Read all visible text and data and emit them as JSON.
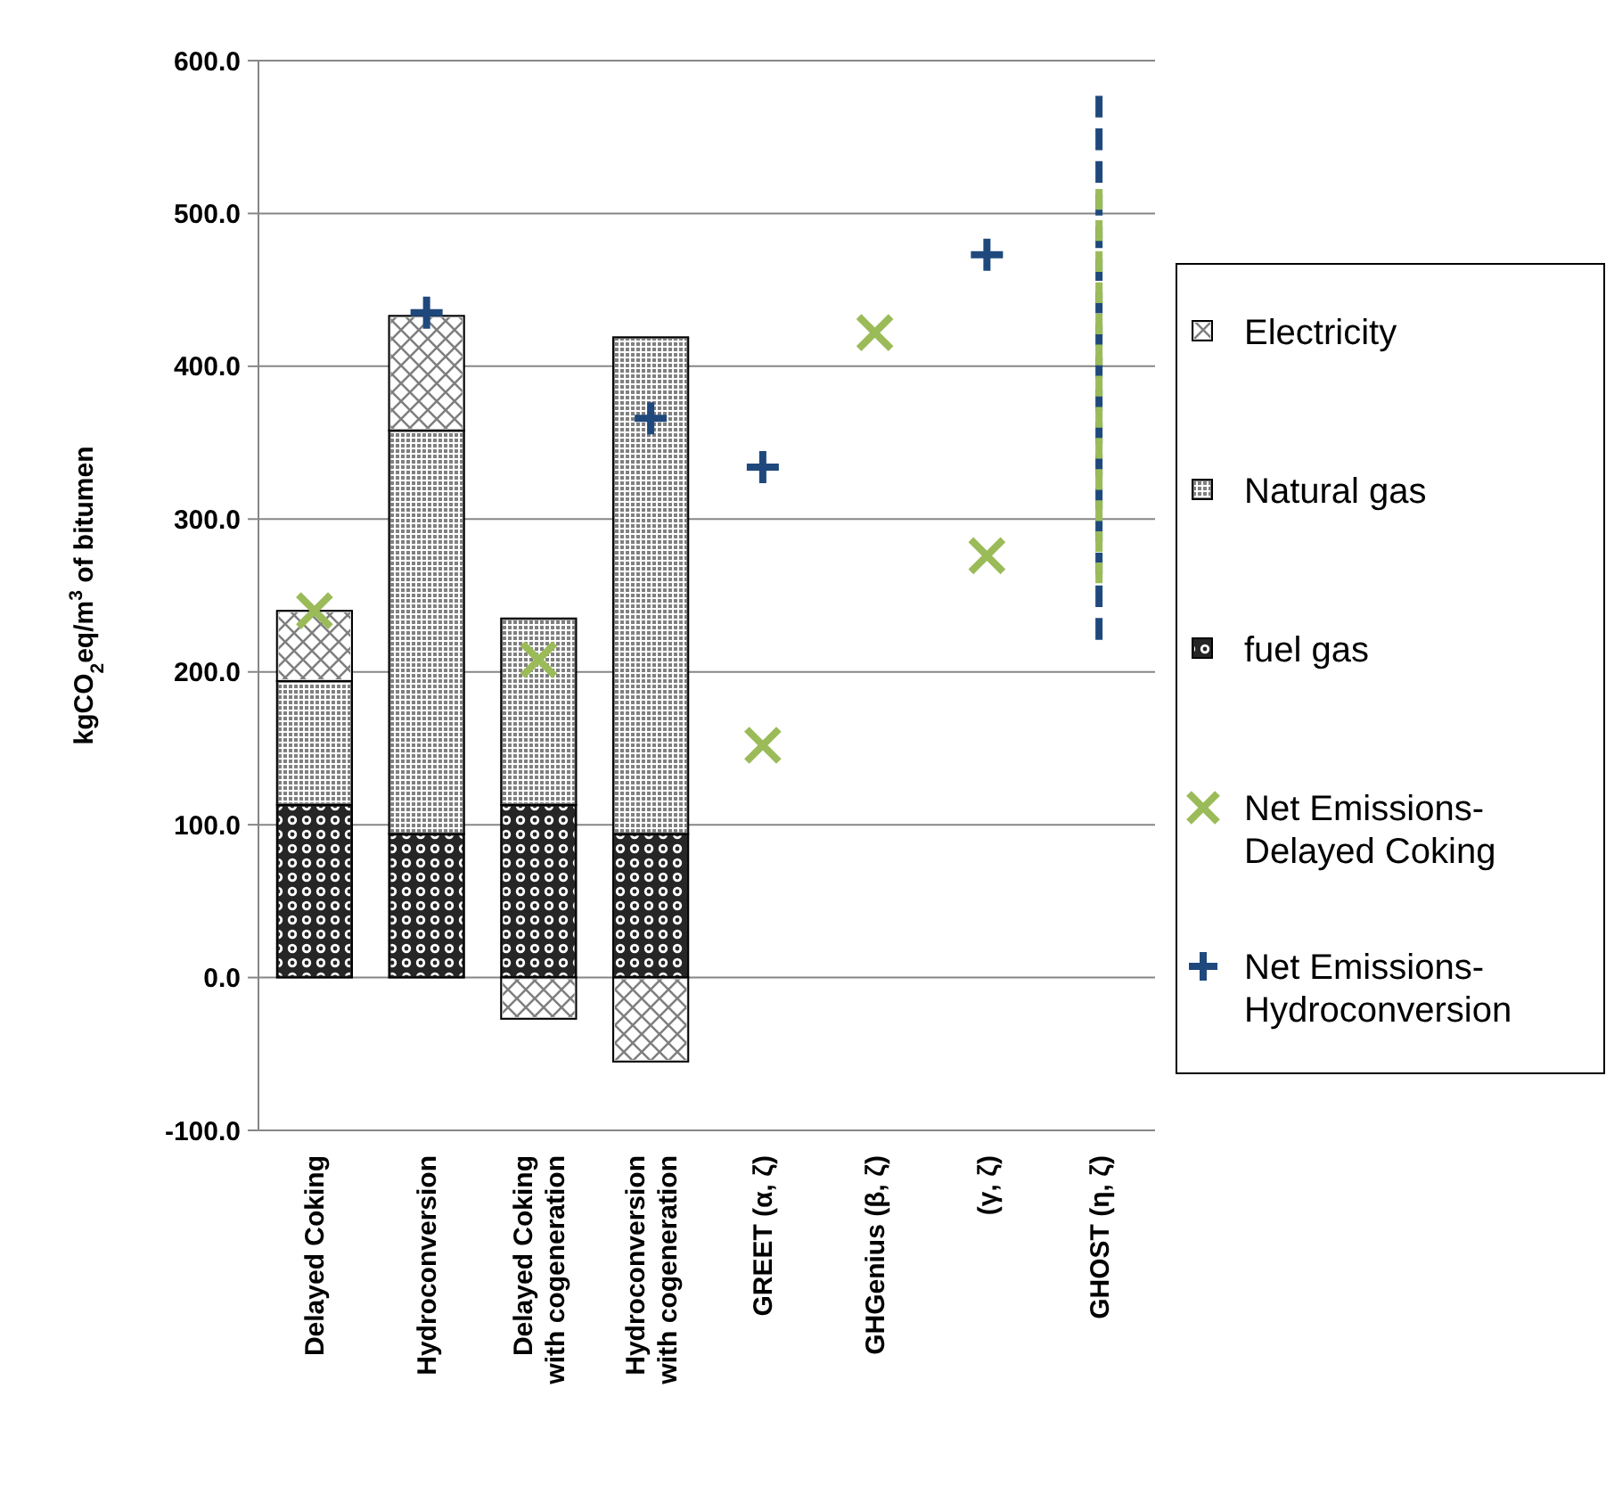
{
  "chart_data": {
    "type": "bar",
    "stacked": true,
    "ylabel": "kgCO$_{2}$eq/m$^{3}$ of bitumen",
    "categories": [
      "Delayed Coking",
      "Hydroconversion",
      "Delayed Coking with cogeneration",
      "Hydroconversion with cogeneration",
      "GREET (α, ζ)",
      "GHGenius (β, ζ)",
      "(γ, ζ)",
      "GHOST (η, ζ)"
    ],
    "series": [
      {
        "name": "fuel gas",
        "color": "#262626",
        "values": [
          113,
          94,
          113,
          94,
          null,
          null,
          null,
          null
        ]
      },
      {
        "name": "Natural gas",
        "color": "#808080",
        "values": [
          81,
          264,
          122,
          325,
          null,
          null,
          null,
          null
        ]
      },
      {
        "name": "Electricity",
        "color": "#d9d9d9",
        "values": [
          46,
          75,
          -27,
          -55,
          null,
          null,
          null,
          null
        ]
      },
      {
        "name": "Net Emissions-Delayed Coking",
        "type": "scatter",
        "marker": "cross",
        "color": "#9bbb59",
        "x": [
          "Delayed Coking",
          "Delayed Coking with cogeneration",
          "GREET (α, ζ)",
          "GHGenius (β, ζ)",
          "(γ, ζ)"
        ],
        "values": [
          240,
          208,
          152,
          422,
          276
        ]
      },
      {
        "name": "Net Emissions-Hydroconversion",
        "type": "scatter",
        "marker": "plus",
        "color": "#1f497d",
        "x": [
          "Hydroconversion",
          "Hydroconversion with cogeneration",
          "GREET (α, ζ)",
          "(γ, ζ)"
        ],
        "values": [
          435,
          366,
          334,
          473
        ]
      },
      {
        "type": "line",
        "line_style": "dashed",
        "color": "#1f497d",
        "x": [
          "GHOST (η, ζ)",
          "GHOST (η, ζ)"
        ],
        "values": [
          221,
          577
        ]
      },
      {
        "type": "line",
        "line_style": "dashed",
        "color": "#9bbb59",
        "x": [
          "GHOST (η, ζ)",
          "GHOST (η, ζ)"
        ],
        "values": [
          258,
          516
        ]
      }
    ],
    "ylim": [
      -100,
      600
    ],
    "yticks": [
      {
        "value": -100,
        "label": "-100.0"
      },
      {
        "value": 0,
        "label": "0.0"
      },
      {
        "value": 100,
        "label": "100.0"
      },
      {
        "value": 200,
        "label": "200.0"
      },
      {
        "value": 300,
        "label": "300.0"
      },
      {
        "value": 400,
        "label": "400.0"
      },
      {
        "value": 500,
        "label": "500.0"
      },
      {
        "value": 600,
        "label": "600.0"
      }
    ],
    "grid": "y",
    "legend": "right"
  }
}
